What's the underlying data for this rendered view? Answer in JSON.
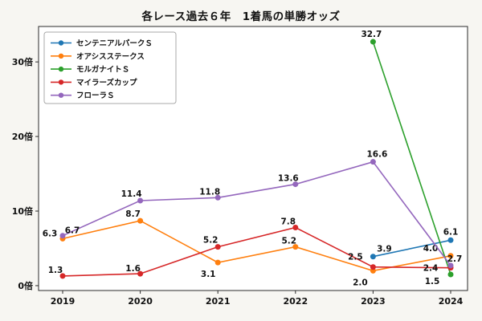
{
  "chart_data": {
    "type": "line",
    "title": "各レース過去６年　1着馬の単勝オッズ",
    "xlabel": "",
    "ylabel": "",
    "x": [
      2019,
      2020,
      2021,
      2022,
      2023,
      2024
    ],
    "x_tick_labels": [
      "2019",
      "2020",
      "2021",
      "2022",
      "2023",
      "2024"
    ],
    "y_ticks": [
      0,
      10,
      20,
      30
    ],
    "y_tick_labels": [
      "0倍",
      "10倍",
      "20倍",
      "30倍"
    ],
    "ylim": [
      -0.65,
      34.75
    ],
    "grid": false,
    "legend_position": "upper-left",
    "series": [
      {
        "name": "センテニアルパークＳ",
        "color": "#1f77b4",
        "values": [
          null,
          null,
          null,
          null,
          3.9,
          6.1
        ],
        "labels": [
          null,
          null,
          null,
          null,
          "3.9",
          "6.1"
        ],
        "label_offsets": [
          null,
          null,
          null,
          null,
          [
            14,
            -6
          ],
          [
            0,
            -7
          ]
        ]
      },
      {
        "name": "オアシスステークス",
        "color": "#ff7f0e",
        "values": [
          6.3,
          8.7,
          3.1,
          5.2,
          2.0,
          4.0
        ],
        "labels": [
          "6.3",
          "8.7",
          "3.1",
          "5.2",
          "2.0",
          "4.0"
        ],
        "label_offsets": [
          [
            -16,
            -3
          ],
          [
            -9,
            -5
          ],
          [
            -12,
            18
          ],
          [
            -8,
            -4
          ],
          [
            -16,
            18
          ],
          [
            -25,
            -6
          ]
        ]
      },
      {
        "name": "モルガナイトＳ",
        "color": "#2ca02c",
        "values": [
          null,
          null,
          null,
          null,
          32.7,
          1.5
        ],
        "labels": [
          null,
          null,
          null,
          null,
          "32.7",
          "1.5"
        ],
        "label_offsets": [
          null,
          null,
          null,
          null,
          [
            -2,
            -6
          ],
          [
            -23,
            12
          ]
        ]
      },
      {
        "name": "マイラーズカップ",
        "color": "#d62728",
        "values": [
          1.3,
          1.6,
          5.2,
          7.8,
          2.5,
          2.4
        ],
        "labels": [
          "1.3",
          "1.6",
          "5.2",
          "7.8",
          "2.5",
          "2.4"
        ],
        "label_offsets": [
          [
            -9,
            -4
          ],
          [
            -9,
            -3
          ],
          [
            -9,
            -5
          ],
          [
            -9,
            -4
          ],
          [
            -22,
            -9
          ],
          [
            -25,
            4
          ]
        ]
      },
      {
        "name": "フローラＳ",
        "color": "#9467bd",
        "values": [
          6.7,
          11.4,
          11.8,
          13.6,
          16.6,
          2.7
        ],
        "labels": [
          "6.7",
          "11.4",
          "11.8",
          "13.6",
          "16.6",
          "2.7"
        ],
        "label_offsets": [
          [
            12,
            -3
          ],
          [
            -11,
            -5
          ],
          [
            -10,
            -4
          ],
          [
            -9,
            -4
          ],
          [
            5,
            -6
          ],
          [
            5,
            -5
          ]
        ]
      }
    ]
  },
  "colors": {
    "figure_bg": "#f7f6f2",
    "plot_bg": "#ffffff",
    "axis": "#2b2b2b",
    "text": "#111111",
    "legend_border": "#a8a8a8",
    "legend_bg": "#ffffff"
  }
}
